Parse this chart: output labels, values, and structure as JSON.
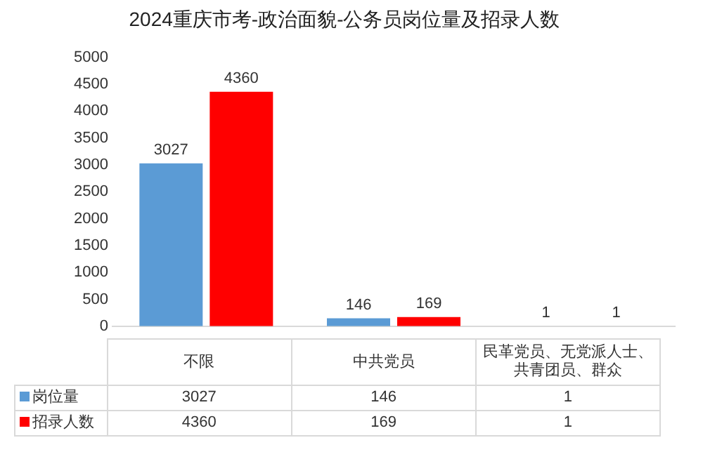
{
  "chart_data": {
    "type": "bar",
    "title": "2024重庆市考-政治面貌-公务员岗位量及招录人数",
    "categories": [
      "不限",
      "中共党员",
      "民革党员、无党派人士、共青团员、群众"
    ],
    "series": [
      {
        "name": "岗位量",
        "color": "#5b9bd5",
        "values": [
          3027,
          146,
          1
        ],
        "value_labels": [
          "3027",
          "146",
          "1"
        ]
      },
      {
        "name": "招录人数",
        "color": "#ff0000",
        "values": [
          4360,
          169,
          1
        ],
        "value_labels": [
          "4360",
          "169",
          "1"
        ]
      }
    ],
    "ylim": [
      0,
      5000
    ],
    "yticks": [
      0,
      500,
      1000,
      1500,
      2000,
      2500,
      3000,
      3500,
      4000,
      4500,
      5000
    ],
    "grid": false,
    "legend": "bottom"
  }
}
